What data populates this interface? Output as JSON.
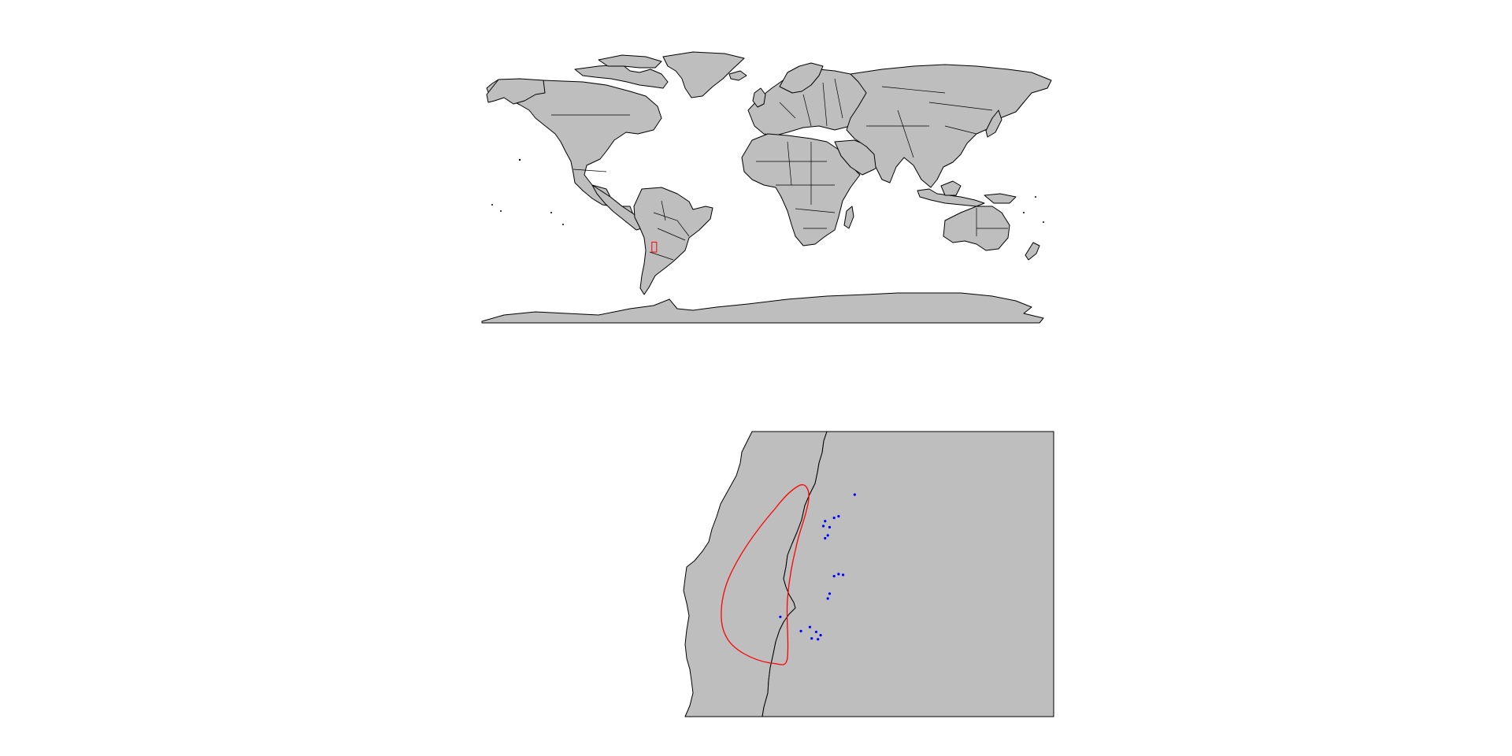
{
  "colors": {
    "background": "#ffffff",
    "land": "#bebebe",
    "border": "#000000",
    "highlight": "#ff0000",
    "points": "#0000ff"
  },
  "world_map": {
    "projection": "equirectangular",
    "lon_range": [
      -180,
      180
    ],
    "lat_range": [
      -90,
      84
    ],
    "highlight_box": {
      "lon": [
        -73,
        -70
      ],
      "lat": [
        -40,
        -33
      ]
    }
  },
  "zoom_map": {
    "lon_range": [
      -73.2,
      -69
    ],
    "lat_range": [
      -41,
      -34
    ],
    "range_polygon_label": "",
    "points": [
      {
        "lon": -71.55,
        "lat": -36.2
      },
      {
        "lon": -71.57,
        "lat": -36.32
      },
      {
        "lon": -71.45,
        "lat": -36.12
      },
      {
        "lon": -71.4,
        "lat": -36.08
      },
      {
        "lon": -71.5,
        "lat": -36.35
      },
      {
        "lon": -71.52,
        "lat": -36.55
      },
      {
        "lon": -71.55,
        "lat": -36.62
      },
      {
        "lon": -71.4,
        "lat": -37.5
      },
      {
        "lon": -71.45,
        "lat": -37.55
      },
      {
        "lon": -71.35,
        "lat": -37.52
      },
      {
        "lon": -71.5,
        "lat": -37.98
      },
      {
        "lon": -71.52,
        "lat": -38.1
      },
      {
        "lon": -72.05,
        "lat": -38.55
      },
      {
        "lon": -71.72,
        "lat": -38.8
      },
      {
        "lon": -71.82,
        "lat": -38.9
      },
      {
        "lon": -71.65,
        "lat": -38.92
      },
      {
        "lon": -71.6,
        "lat": -39.0
      },
      {
        "lon": -71.63,
        "lat": -39.1
      },
      {
        "lon": -71.7,
        "lat": -39.08
      },
      {
        "lon": -71.22,
        "lat": -35.55
      }
    ]
  }
}
